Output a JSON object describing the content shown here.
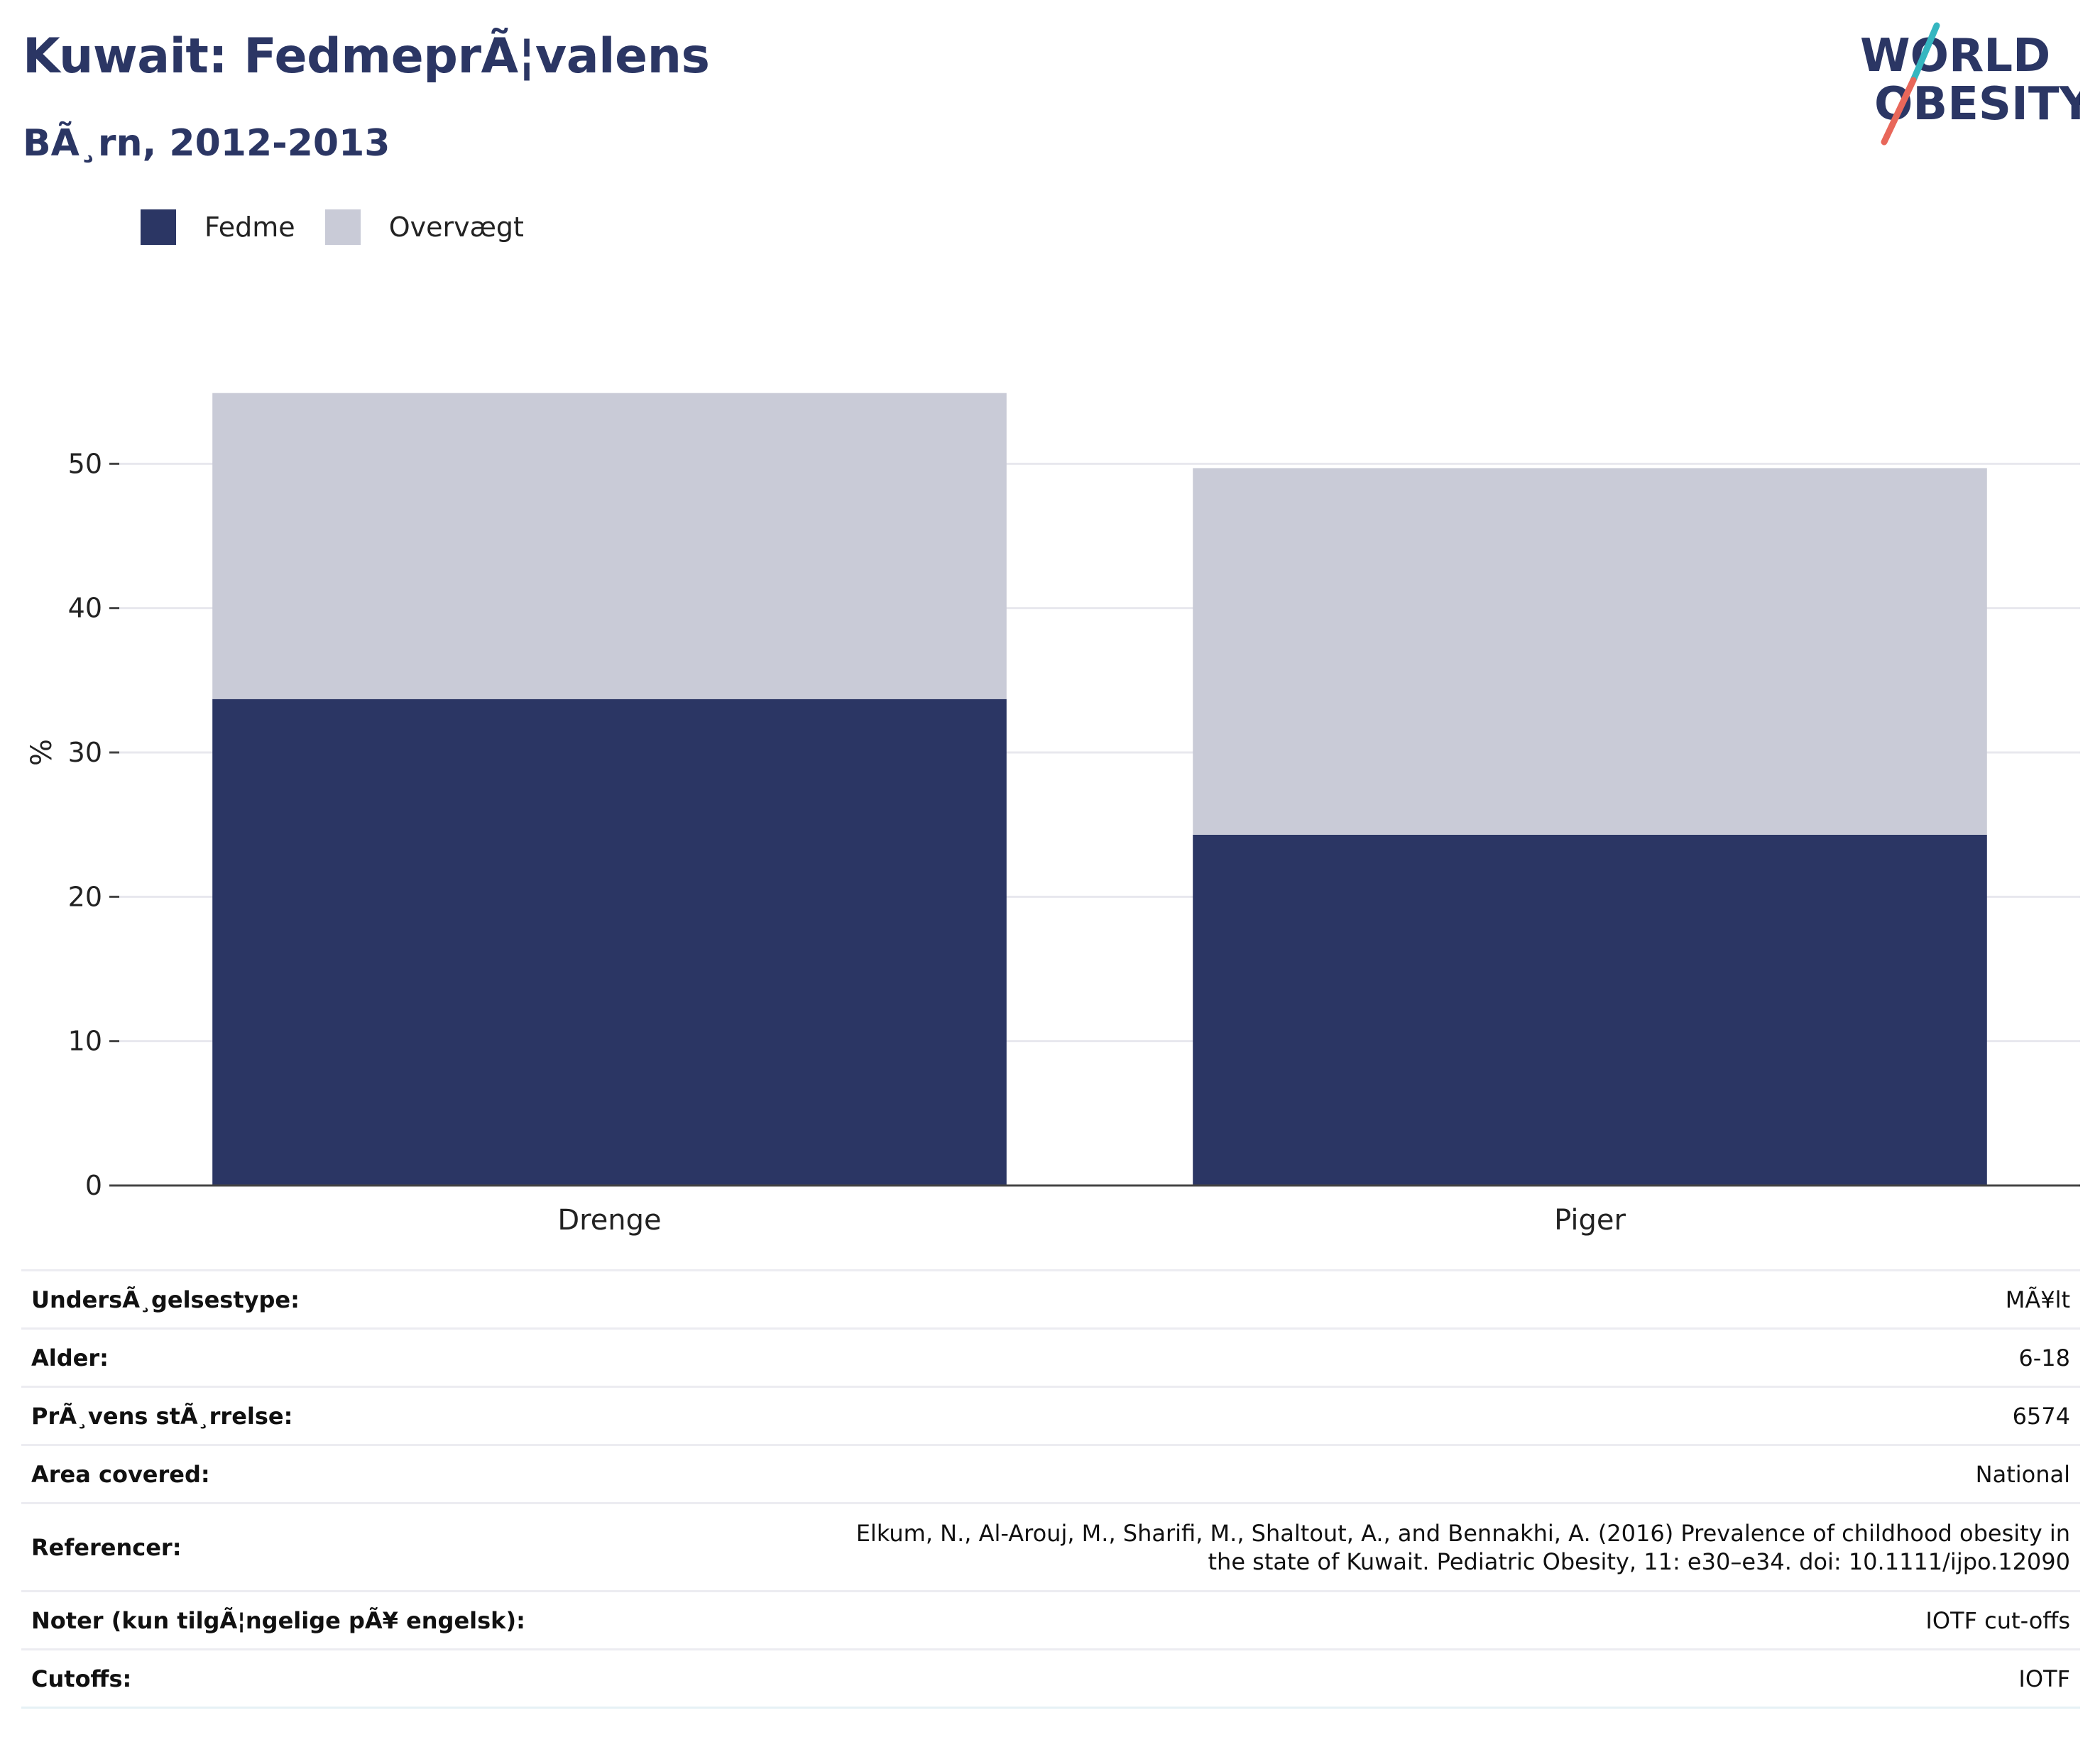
{
  "header": {
    "title": "Kuwait: FedmeprÃ¦valens",
    "subtitle": "BÃ¸rn, 2012-2013"
  },
  "logo": {
    "line1": "WORLD",
    "line2": "OBESITY",
    "colors": {
      "text": "#2b3664",
      "teal": "#35b6c0",
      "coral": "#e8675a"
    }
  },
  "legend": {
    "items": [
      {
        "label": "Fedme",
        "color": "#2b3664"
      },
      {
        "label": "Overvægt",
        "color": "#c9cbd7"
      }
    ]
  },
  "chart_data": {
    "type": "bar",
    "stacked": true,
    "categories": [
      "Drenge",
      "Piger"
    ],
    "series": [
      {
        "name": "Fedme",
        "values": [
          33.7,
          24.3
        ],
        "color": "#2b3664"
      },
      {
        "name": "Overvægt",
        "values": [
          21.2,
          25.4
        ],
        "color": "#c9cbd7"
      }
    ],
    "ylabel": "%",
    "ylim": [
      0,
      60
    ],
    "yticks": [
      0,
      10,
      20,
      30,
      40,
      50
    ],
    "grid": true,
    "legend_position": "top-left"
  },
  "info": {
    "rows": [
      {
        "label": "UndersÃ¸gelsestype:",
        "value": "MÃ¥lt"
      },
      {
        "label": "Alder:",
        "value": "6-18"
      },
      {
        "label": "PrÃ¸vens stÃ¸rrelse:",
        "value": "6574"
      },
      {
        "label": "Area covered:",
        "value": "National"
      },
      {
        "label": "Referencer:",
        "value": "Elkum, N., Al-Arouj, M., Sharifi, M., Shaltout, A., and Bennakhi, A. (2016) Prevalence of childhood obesity in the state of Kuwait. Pediatric Obesity, 11: e30–e34. doi: 10.1111/ijpo.12090"
      },
      {
        "label": "Noter (kun tilgÃ¦ngelige pÃ¥ engelsk):",
        "value": "IOTF cut-offs"
      },
      {
        "label": "Cutoffs:",
        "value": "IOTF"
      }
    ]
  }
}
